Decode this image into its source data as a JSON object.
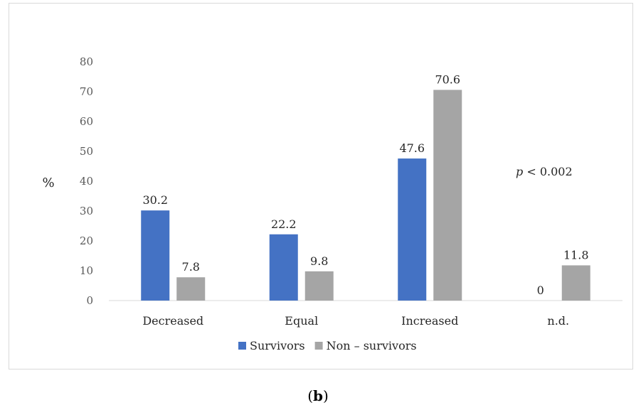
{
  "chart_data": {
    "type": "bar",
    "title": "",
    "xlabel": "",
    "ylabel": "%",
    "ylim": [
      0,
      80
    ],
    "yticks": [
      0,
      10,
      20,
      30,
      40,
      50,
      60,
      70,
      80
    ],
    "grid": false,
    "legend_position": "bottom",
    "categories": [
      "Decreased",
      "Equal",
      "Increased",
      "n.d."
    ],
    "series": [
      {
        "name": "Survivors",
        "color": "#4472c4",
        "values": [
          30.2,
          22.2,
          47.6,
          0
        ],
        "labels": [
          "30.2",
          "22.2",
          "47.6",
          "0"
        ]
      },
      {
        "name": "Non – survivors",
        "color": "#a5a5a5",
        "values": [
          7.8,
          9.8,
          70.6,
          11.8
        ],
        "labels": [
          "7.8",
          "9.8",
          "70.6",
          "11.8"
        ]
      }
    ],
    "annotation": {
      "italic": "p",
      "text": " < 0.002"
    }
  },
  "caption": {
    "open": "(",
    "letter": "b",
    "close": ")"
  }
}
